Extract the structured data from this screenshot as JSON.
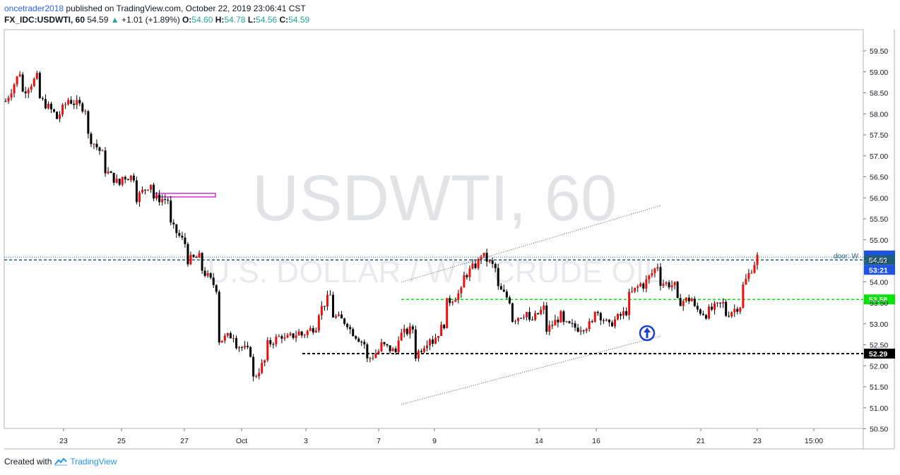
{
  "header": {
    "author": "oncetrader2018",
    "published_text": "published on TradingView.com, October 22, 2019 23:06:41 CST",
    "symbol": "FX_IDC:USDWTI, 60",
    "last": "54.59",
    "change": "+1.01 (+1.89%)",
    "o_label": "O:",
    "o_value": "54.60",
    "h_label": "H:",
    "h_value": "54.78",
    "l_label": "L:",
    "l_value": "54.56",
    "c_label": "C:",
    "c_value": "54.59"
  },
  "footer": {
    "created_with": "Created with",
    "brand": "TradingView"
  },
  "colors": {
    "bullish": "#26a69a",
    "bearish": "#ef5350",
    "candle_red": "#f20d0d",
    "support_green": "#00e600",
    "price_blue": "#1e53e5",
    "accent": "#2962ff"
  },
  "chart_data": {
    "type": "candlestick",
    "watermark": {
      "symbol": "USDWTI, 60",
      "description": "U.S. DOLLAR / WTI CRUDE OIL"
    },
    "y_ticks": [
      "59.50",
      "59.00",
      "58.50",
      "58.00",
      "57.50",
      "57.00",
      "56.50",
      "56.00",
      "55.50",
      "55.00",
      "54.50",
      "54.00",
      "53.50",
      "53.00",
      "52.50",
      "52.00",
      "51.50",
      "51.00",
      "50.50"
    ],
    "ylim": [
      50.5,
      59.5
    ],
    "x_ticks": [
      "23",
      "25",
      "27",
      "Oct",
      "3",
      "7",
      "9",
      "14",
      "16",
      "21",
      "23",
      "15:00"
    ],
    "price_labels": [
      {
        "text": "54.52",
        "price": 54.52,
        "color": "#1e5f7d"
      },
      {
        "text": "53:21",
        "color": "#1e53e5"
      },
      {
        "text": "53.58",
        "price": 53.58,
        "color": "#00e600"
      },
      {
        "text": "52.29",
        "price": 52.29,
        "color": "#000000"
      }
    ],
    "horizontal_lines": [
      {
        "price": 54.52,
        "style": "dashed",
        "color": "#1e5f7d"
      },
      {
        "price": 53.58,
        "style": "dashed",
        "color": "#00e600"
      },
      {
        "price": 52.29,
        "style": "dashed",
        "color": "#000000"
      }
    ],
    "annotation_text": "door: W",
    "channel": {
      "upper": [
        [
          53.99,
          55.82
        ]
      ],
      "lower": [
        [
          51.08,
          52.71
        ]
      ]
    },
    "close_path": [
      [
        58.3,
        59.1
      ],
      [
        58.5,
        58.9
      ],
      [
        58.4,
        58.0
      ],
      [
        57.8,
        58.45
      ],
      [
        58.3,
        58.1
      ],
      [
        57.5,
        57.0
      ],
      [
        56.7,
        56.3
      ],
      [
        56.5,
        56.5
      ],
      [
        56.0,
        56.4
      ],
      [
        56.0,
        55.95
      ],
      [
        55.4,
        54.9
      ],
      [
        54.5,
        54.6
      ],
      [
        54.3,
        53.8
      ],
      [
        52.6,
        52.75
      ],
      [
        52.55,
        52.3
      ],
      [
        51.6,
        52.2
      ],
      [
        52.5,
        52.75
      ],
      [
        52.6,
        52.8
      ],
      [
        52.7,
        52.95
      ],
      [
        53.2,
        53.75
      ],
      [
        53.2,
        53.0
      ],
      [
        52.9,
        52.5
      ],
      [
        52.1,
        52.4
      ],
      [
        52.5,
        52.3
      ],
      [
        52.7,
        52.9
      ],
      [
        52.2,
        52.7
      ],
      [
        52.5,
        53.1
      ],
      [
        53.5,
        53.8
      ],
      [
        54.1,
        54.5
      ],
      [
        54.7,
        54.3
      ],
      [
        53.9,
        53.5
      ],
      [
        53.1,
        53.3
      ],
      [
        53.0,
        53.4
      ],
      [
        52.8,
        53.2
      ],
      [
        53.0,
        52.9
      ],
      [
        52.9,
        53.0
      ],
      [
        53.4,
        52.9
      ],
      [
        53.0,
        53.3
      ],
      [
        53.6,
        54.0
      ],
      [
        53.9,
        54.45
      ],
      [
        54.0,
        53.9
      ],
      [
        53.5,
        53.6
      ],
      [
        53.4,
        53.2
      ],
      [
        53.3,
        53.5
      ],
      [
        53.2,
        53.45
      ],
      [
        53.8,
        54.59
      ]
    ]
  }
}
